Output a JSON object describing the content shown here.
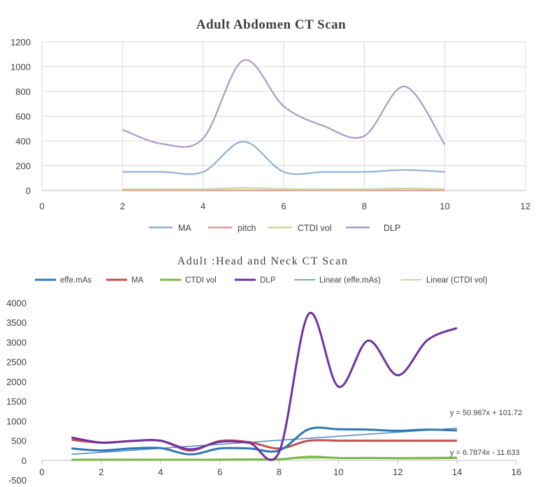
{
  "chart_data": [
    {
      "type": "line",
      "title": "Adult Abdomen CT Scan",
      "xlim": [
        0,
        12
      ],
      "ylim": [
        0,
        1200
      ],
      "x_ticks": [
        0,
        2,
        4,
        6,
        8,
        10,
        12
      ],
      "y_ticks": [
        0,
        200,
        400,
        600,
        800,
        1000,
        1200
      ],
      "grid": "vertical and horizontal",
      "legend_position": "bottom",
      "x": [
        2,
        3,
        4,
        5,
        6,
        7,
        8,
        9,
        10
      ],
      "series": [
        {
          "name": "MA",
          "color": "#8fb1d6",
          "values": [
            150,
            150,
            150,
            395,
            150,
            150,
            150,
            165,
            150
          ]
        },
        {
          "name": "pitch",
          "color": "#e29a96",
          "values": [
            1,
            1,
            1,
            1,
            1,
            1,
            1,
            1,
            1
          ]
        },
        {
          "name": "CTDI vol",
          "color": "#c9d99a",
          "values": [
            10,
            10,
            10,
            20,
            12,
            10,
            10,
            17,
            10
          ]
        },
        {
          "name": "DLP",
          "color": "#a999c9",
          "values": [
            490,
            375,
            420,
            1050,
            680,
            520,
            440,
            840,
            370
          ]
        }
      ]
    },
    {
      "type": "line",
      "title": "Adult :Head and Neck CT Scan",
      "xlim": [
        0,
        16
      ],
      "ylim": [
        -500,
        4000
      ],
      "x_ticks": [
        0,
        2,
        4,
        6,
        8,
        10,
        12,
        14,
        16
      ],
      "y_ticks": [
        -500,
        0,
        500,
        1000,
        1500,
        2000,
        2500,
        3000,
        3500,
        4000
      ],
      "grid": "none",
      "legend_position": "top",
      "x": [
        1,
        2,
        3,
        4,
        5,
        6,
        7,
        8,
        9,
        10,
        11,
        12,
        13,
        14
      ],
      "series": [
        {
          "name": "effe.mAs",
          "color": "#2e75b6",
          "values": [
            300,
            250,
            300,
            310,
            150,
            300,
            300,
            250,
            790,
            790,
            780,
            750,
            780,
            760
          ]
        },
        {
          "name": "MA",
          "color": "#c0504d",
          "values": [
            520,
            450,
            490,
            500,
            250,
            490,
            460,
            300,
            500,
            500,
            500,
            500,
            500,
            500
          ]
        },
        {
          "name": "CTDI vol",
          "color": "#7ab648",
          "values": [
            15,
            15,
            15,
            15,
            15,
            15,
            20,
            25,
            90,
            60,
            60,
            55,
            55,
            60
          ]
        },
        {
          "name": "DLP",
          "color": "#7030a0",
          "values": [
            580,
            450,
            490,
            500,
            280,
            470,
            440,
            210,
            3720,
            1870,
            3040,
            2160,
            3050,
            3360
          ]
        }
      ],
      "trendlines": [
        {
          "name": "Linear (effe.mAs)",
          "color": "#4a86c5",
          "slope": 50.967,
          "intercept": 101.72,
          "equation": "y = 50.967x + 101.72"
        },
        {
          "name": "Linear (CTDI vol)",
          "color": "#a9d08e",
          "slope": 6.7874,
          "intercept": -11.633,
          "equation": "y = 6.7874x - 11.633"
        }
      ]
    }
  ]
}
